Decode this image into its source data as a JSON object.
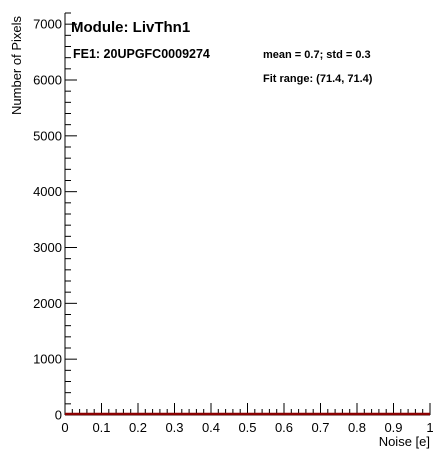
{
  "chart_data": {
    "type": "histogram",
    "title": "",
    "xlabel": "Noise [e]",
    "ylabel": "Number of Pixels",
    "xlim": [
      0,
      1
    ],
    "ylim": [
      0,
      7200
    ],
    "x_ticks": [
      "0",
      "0.1",
      "0.2",
      "0.3",
      "0.4",
      "0.5",
      "0.6",
      "0.7",
      "0.8",
      "0.9",
      "1"
    ],
    "y_ticks": [
      "0",
      "1000",
      "2000",
      "3000",
      "4000",
      "5000",
      "6000",
      "7000"
    ],
    "series": [
      {
        "color": "#8b0000",
        "x": [
          0,
          1
        ],
        "values": [
          0,
          0
        ]
      }
    ],
    "annotations": {
      "module": "Module: LivThn1",
      "fe": "FE1: 20UPGFC0009274",
      "stats": "mean = 0.7;    std = 0.3",
      "fit": "Fit range: (71.4, 71.4)"
    },
    "grid": false
  }
}
